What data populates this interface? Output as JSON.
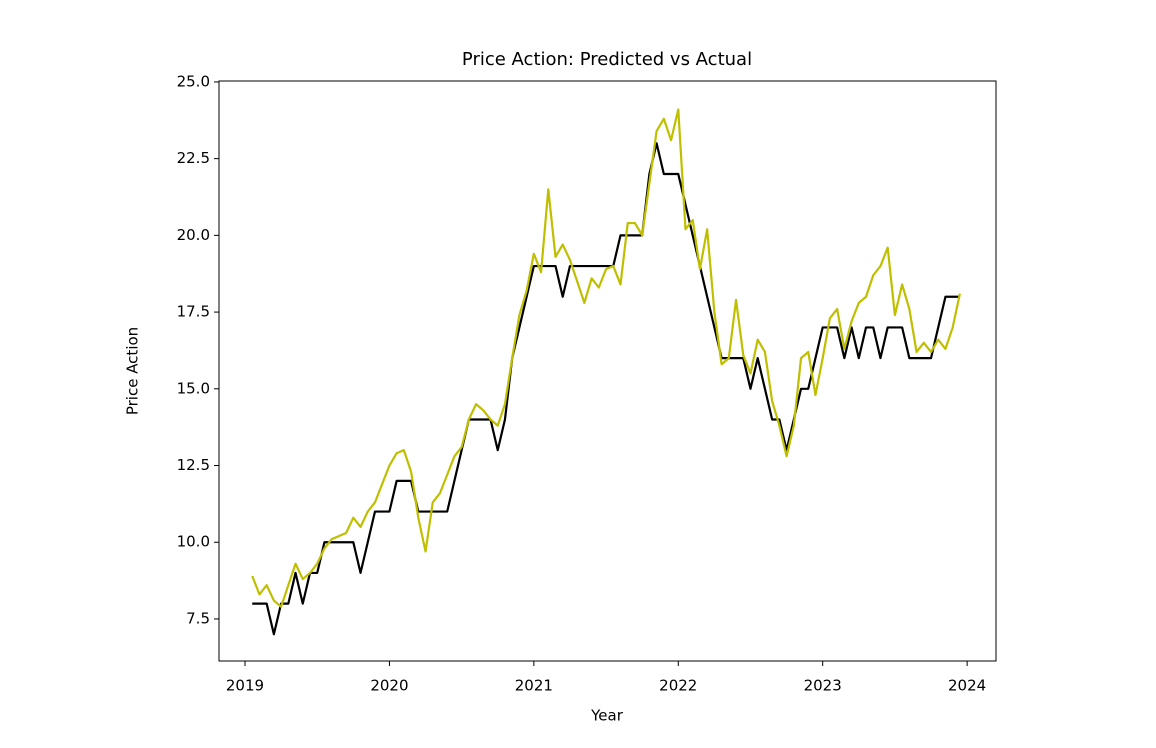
{
  "chart_data": {
    "type": "line",
    "title": "Price Action: Predicted vs Actual",
    "xlabel": "Year",
    "ylabel": "Price Action",
    "x": [
      2019.05,
      2019.1,
      2019.15,
      2019.2,
      2019.25,
      2019.3,
      2019.35,
      2019.4,
      2019.45,
      2019.5,
      2019.55,
      2019.6,
      2019.65,
      2019.7,
      2019.75,
      2019.8,
      2019.85,
      2019.9,
      2019.95,
      2020.0,
      2020.05,
      2020.1,
      2020.15,
      2020.2,
      2020.25,
      2020.3,
      2020.35,
      2020.4,
      2020.45,
      2020.5,
      2020.55,
      2020.6,
      2020.65,
      2020.7,
      2020.75,
      2020.8,
      2020.85,
      2020.9,
      2020.95,
      2021.0,
      2021.05,
      2021.1,
      2021.15,
      2021.2,
      2021.25,
      2021.3,
      2021.35,
      2021.4,
      2021.45,
      2021.5,
      2021.55,
      2021.6,
      2021.65,
      2021.7,
      2021.75,
      2021.8,
      2021.85,
      2021.9,
      2021.95,
      2022.0,
      2022.05,
      2022.1,
      2022.15,
      2022.2,
      2022.25,
      2022.3,
      2022.35,
      2022.4,
      2022.45,
      2022.5,
      2022.55,
      2022.6,
      2022.65,
      2022.7,
      2022.75,
      2022.8,
      2022.85,
      2022.9,
      2022.95,
      2023.0,
      2023.05,
      2023.1,
      2023.15,
      2023.2,
      2023.25,
      2023.3,
      2023.35,
      2023.4,
      2023.45,
      2023.5,
      2023.55,
      2023.6,
      2023.65,
      2023.7,
      2023.75,
      2023.8,
      2023.85,
      2023.9,
      2023.95
    ],
    "series": [
      {
        "color": "#000000",
        "values": [
          8,
          8,
          8,
          7,
          8,
          8,
          9,
          8,
          9,
          9,
          10,
          10,
          10,
          10,
          10,
          9,
          10,
          11,
          11,
          11,
          12,
          12,
          12,
          11,
          11,
          11,
          11,
          11,
          12,
          13,
          14,
          14,
          14,
          14,
          13,
          14,
          16,
          17,
          18,
          19,
          19,
          19,
          19,
          18,
          19,
          19,
          19,
          19,
          19,
          19,
          19,
          20,
          20,
          20,
          20,
          22,
          23,
          22,
          22,
          22,
          21,
          20,
          19,
          18,
          17,
          16,
          16,
          16,
          16,
          15,
          16,
          15,
          14,
          14,
          13,
          14,
          15,
          15,
          16,
          17,
          17,
          17,
          16,
          17,
          16,
          17,
          17,
          16,
          17,
          17,
          17,
          16,
          16,
          16,
          16,
          17,
          18,
          18,
          18
        ]
      },
      {
        "color": "#bfbf00",
        "values": [
          8.9,
          8.3,
          8.6,
          8.1,
          7.9,
          8.6,
          9.3,
          8.8,
          9.0,
          9.3,
          9.8,
          10.1,
          10.2,
          10.3,
          10.8,
          10.5,
          11.0,
          11.3,
          11.9,
          12.5,
          12.9,
          13.0,
          12.3,
          10.8,
          9.7,
          11.3,
          11.6,
          12.2,
          12.8,
          13.1,
          14.0,
          14.5,
          14.3,
          14.0,
          13.8,
          14.5,
          16.0,
          17.4,
          18.2,
          19.4,
          18.8,
          21.5,
          19.3,
          19.7,
          19.2,
          18.5,
          17.8,
          18.6,
          18.3,
          18.9,
          19.0,
          18.4,
          20.4,
          20.4,
          20.0,
          21.7,
          23.4,
          23.8,
          23.1,
          24.1,
          20.2,
          20.5,
          18.9,
          20.2,
          17.5,
          15.8,
          16.0,
          17.9,
          16.1,
          15.5,
          16.6,
          16.2,
          14.6,
          13.8,
          12.8,
          13.8,
          16.0,
          16.2,
          14.8,
          16.0,
          17.3,
          17.6,
          16.3,
          17.2,
          17.8,
          18.0,
          18.7,
          19.0,
          19.6,
          17.4,
          18.4,
          17.6,
          16.2,
          16.5,
          16.2,
          16.6,
          16.3,
          17.0,
          18.1
        ]
      }
    ],
    "xlim": [
      2018.82,
      2024.2
    ],
    "xticks": [
      2019,
      2020,
      2021,
      2022,
      2023,
      2024
    ],
    "ylim": [
      6.13,
      25.03
    ],
    "yticks": [
      7.5,
      {
        "value": 10,
        "label": "10.0"
      },
      12.5,
      {
        "value": 15,
        "label": "15.0"
      },
      17.5,
      {
        "value": 20,
        "label": "20.0"
      },
      22.5,
      {
        "value": 25,
        "label": "25.0"
      }
    ],
    "grid": false
  }
}
